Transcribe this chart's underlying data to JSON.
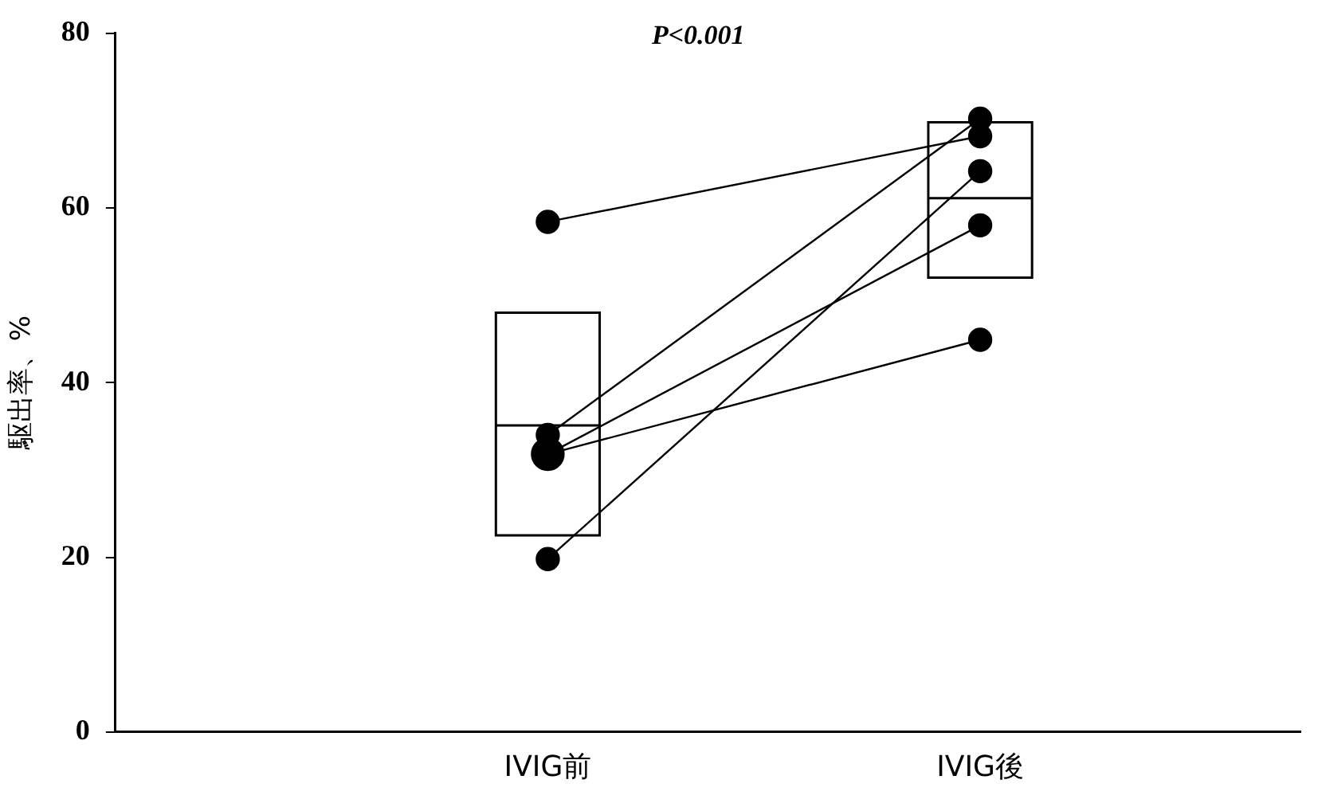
{
  "chart_data": {
    "type": "box",
    "ylabel": "駆出率、%",
    "categories": [
      "IVIG前",
      "IVIG後"
    ],
    "boxes": [
      {
        "q1": 22.5,
        "median": 35.1,
        "q3": 48
      },
      {
        "q1": 52,
        "median": 61.1,
        "q3": 69.8
      }
    ],
    "series": [
      {
        "type": "line",
        "color": "#000000",
        "values": [
          58.4,
          68.2
        ]
      },
      {
        "type": "line",
        "color": "#000000",
        "values": [
          34,
          70.2
        ]
      },
      {
        "type": "line",
        "color": "#000000",
        "values": [
          31.8,
          44.9
        ]
      },
      {
        "type": "line",
        "color": "#000000",
        "values": [
          31.8,
          58
        ]
      },
      {
        "type": "line",
        "color": "#000000",
        "values": [
          19.8,
          64.2
        ]
      }
    ],
    "marker": "circle",
    "ylim": [
      0,
      80
    ],
    "yticks": [
      0,
      20,
      40,
      60,
      80
    ],
    "grid": false,
    "legend": false,
    "annotations": [
      "P<0.001"
    ]
  }
}
